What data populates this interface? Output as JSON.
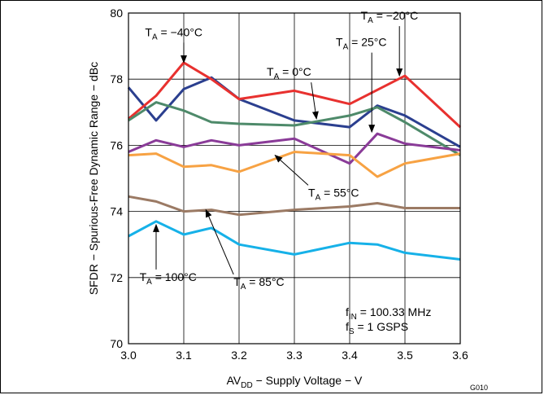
{
  "chart_data": {
    "type": "line",
    "xlabel_main": "AV",
    "xlabel_sub": "DD",
    "xlabel_rest": " − Supply Voltage − V",
    "ylabel": "SFDR − Spurious-Free Dynamic Range − dBc",
    "xlim": [
      3.0,
      3.6
    ],
    "ylim": [
      70,
      80
    ],
    "x_ticks": [
      "3.0",
      "3.1",
      "3.2",
      "3.3",
      "3.4",
      "3.5",
      "3.6"
    ],
    "y_ticks": [
      "70",
      "72",
      "74",
      "76",
      "78",
      "80"
    ],
    "grid": true,
    "figure_id": "G010",
    "conditions": [
      {
        "main": "f",
        "sub": "IN",
        "rest": " = 100.33 MHz"
      },
      {
        "main": "f",
        "sub": "S",
        "rest": " = 1 GSPS"
      }
    ],
    "series": [
      {
        "name": "TA = −40°C",
        "color": "#2b3f8f",
        "x": [
          3.0,
          3.05,
          3.1,
          3.15,
          3.2,
          3.3,
          3.4,
          3.45,
          3.5,
          3.6
        ],
        "y": [
          77.75,
          76.75,
          77.7,
          78.05,
          77.4,
          76.75,
          76.55,
          77.2,
          76.9,
          75.95
        ]
      },
      {
        "name": "TA = −20°C",
        "color": "#e8312f",
        "x": [
          3.0,
          3.05,
          3.1,
          3.15,
          3.2,
          3.3,
          3.4,
          3.5,
          3.6
        ],
        "y": [
          76.8,
          77.5,
          78.5,
          78.0,
          77.4,
          77.65,
          77.25,
          78.1,
          76.55
        ]
      },
      {
        "name": "TA = 0°C",
        "color": "#4e8a6a",
        "x": [
          3.0,
          3.05,
          3.1,
          3.15,
          3.2,
          3.3,
          3.4,
          3.45,
          3.5,
          3.6
        ],
        "y": [
          76.75,
          77.3,
          77.05,
          76.7,
          76.65,
          76.6,
          76.9,
          77.15,
          76.7,
          75.7
        ]
      },
      {
        "name": "TA = 25°C",
        "color": "#8a3b98",
        "x": [
          3.0,
          3.05,
          3.1,
          3.15,
          3.2,
          3.3,
          3.4,
          3.45,
          3.5,
          3.6
        ],
        "y": [
          75.8,
          76.15,
          75.95,
          76.15,
          76.0,
          76.2,
          75.45,
          76.35,
          76.05,
          75.85
        ]
      },
      {
        "name": "TA = 55°C",
        "color": "#f7a243",
        "x": [
          3.0,
          3.05,
          3.1,
          3.15,
          3.2,
          3.3,
          3.4,
          3.45,
          3.5,
          3.6
        ],
        "y": [
          75.7,
          75.75,
          75.35,
          75.4,
          75.2,
          75.8,
          75.7,
          75.05,
          75.45,
          75.75
        ]
      },
      {
        "name": "TA = 85°C",
        "color": "#9b7a64",
        "x": [
          3.0,
          3.05,
          3.1,
          3.15,
          3.2,
          3.3,
          3.4,
          3.45,
          3.5,
          3.6
        ],
        "y": [
          74.45,
          74.3,
          74.0,
          74.05,
          73.9,
          74.05,
          74.15,
          74.25,
          74.1,
          74.1
        ]
      },
      {
        "name": "TA = 100°C",
        "color": "#16b1e8",
        "x": [
          3.0,
          3.05,
          3.1,
          3.15,
          3.2,
          3.3,
          3.4,
          3.45,
          3.5,
          3.6
        ],
        "y": [
          73.25,
          73.7,
          73.3,
          73.5,
          73.0,
          72.7,
          73.05,
          73.0,
          72.75,
          72.55
        ]
      }
    ],
    "annotations": [
      {
        "main": "T",
        "sub": "A",
        "rest": " = −40°C",
        "x": 3.03,
        "y": 79.3,
        "ax": 3.1,
        "ay": 78.5,
        "dir": "end"
      },
      {
        "main": "T",
        "sub": "A",
        "rest": " = −20°C",
        "x": 3.42,
        "y": 79.8,
        "ax": 3.49,
        "ay": 78.1,
        "dir": "end"
      },
      {
        "main": "T",
        "sub": "A",
        "rest": " = 25°C",
        "x": 3.375,
        "y": 79.0,
        "ax": 3.44,
        "ay": 76.4,
        "dir": "end"
      },
      {
        "main": "T",
        "sub": "A",
        "rest": " = 0°C",
        "x": 3.25,
        "y": 78.1,
        "ax": 3.34,
        "ay": 76.8,
        "dir": "end"
      },
      {
        "main": "T",
        "sub": "A",
        "rest": " = 55°C",
        "x": 3.325,
        "y": 74.45,
        "ax": 3.265,
        "ay": 75.7,
        "dir": "end"
      },
      {
        "main": "T",
        "sub": "A",
        "rest": " = 100°C",
        "x": 3.02,
        "y": 71.9,
        "ax": 3.05,
        "ay": 73.6,
        "dir": "end"
      },
      {
        "main": "T",
        "sub": "A",
        "rest": " = 85°C",
        "x": 3.19,
        "y": 71.75,
        "ax": 3.14,
        "ay": 74.05,
        "dir": "end"
      }
    ]
  }
}
